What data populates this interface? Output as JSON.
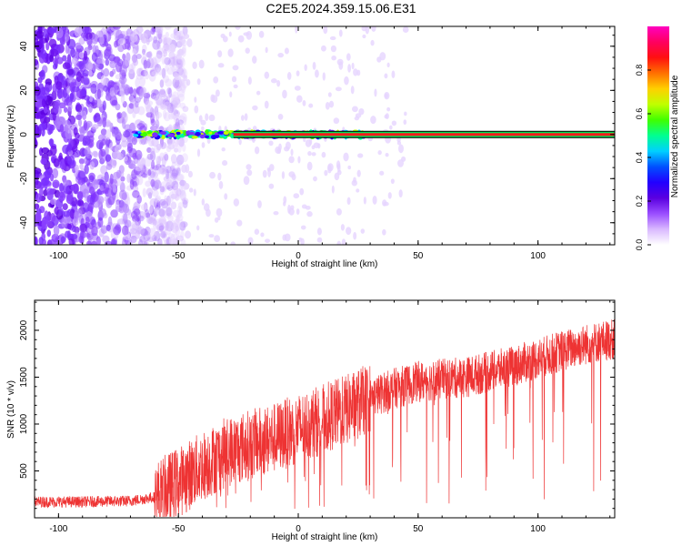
{
  "title": "C2E5.2024.359.15.06.E31",
  "chart_data": [
    {
      "type": "heatmap",
      "xlabel": "Height of straight line (km)",
      "ylabel": "Frequency (Hz)",
      "xlim": [
        -110,
        132
      ],
      "ylim": [
        -50,
        49
      ],
      "xticks": [
        -100,
        -50,
        0,
        50,
        100
      ],
      "yticks": [
        -40,
        -20,
        0,
        20,
        40
      ],
      "colorbar": {
        "label": "Normalized spectral amplitude",
        "ticks": [
          "0.0",
          "0.2",
          "0.4",
          "0.6",
          "0.8"
        ],
        "range": [
          0,
          1
        ],
        "colors": [
          "#ffffff",
          "#d9b8ff",
          "#9a4dff",
          "#5a00e0",
          "#2200ff",
          "#0050ff",
          "#00d0ff",
          "#00ff90",
          "#40ff00",
          "#c0ff00",
          "#ffd000",
          "#ff7000",
          "#ff1010",
          "#ff0060",
          "#ff00c0"
        ]
      },
      "features": {
        "noise_region_x": [
          -110,
          -55
        ],
        "signal_line_frequency": 0,
        "signal_line_start_x": -68,
        "strong_signal_start_x": -27
      },
      "grid": false
    },
    {
      "type": "line",
      "xlabel": "Height of straight line (km)",
      "ylabel": "SNR (10 * v/v)",
      "xlim": [
        -110,
        132
      ],
      "ylim": [
        0,
        2320
      ],
      "xticks": [
        -100,
        -50,
        0,
        50,
        100
      ],
      "yticks": [
        500,
        1000,
        1500,
        2000
      ],
      "color": "#ee3333",
      "series": [
        {
          "trend_x": [
            -110,
            -90,
            -70,
            -60,
            -50,
            -40,
            -30,
            -20,
            -10,
            0,
            10,
            20,
            30,
            40,
            50,
            60,
            70,
            80,
            90,
            100,
            110,
            120,
            130
          ],
          "trend_y": [
            170,
            170,
            180,
            220,
            380,
            550,
            700,
            780,
            850,
            950,
            1050,
            1150,
            1280,
            1380,
            1450,
            1480,
            1500,
            1560,
            1620,
            1700,
            1780,
            1850,
            1900
          ]
        }
      ],
      "grid": false
    }
  ]
}
